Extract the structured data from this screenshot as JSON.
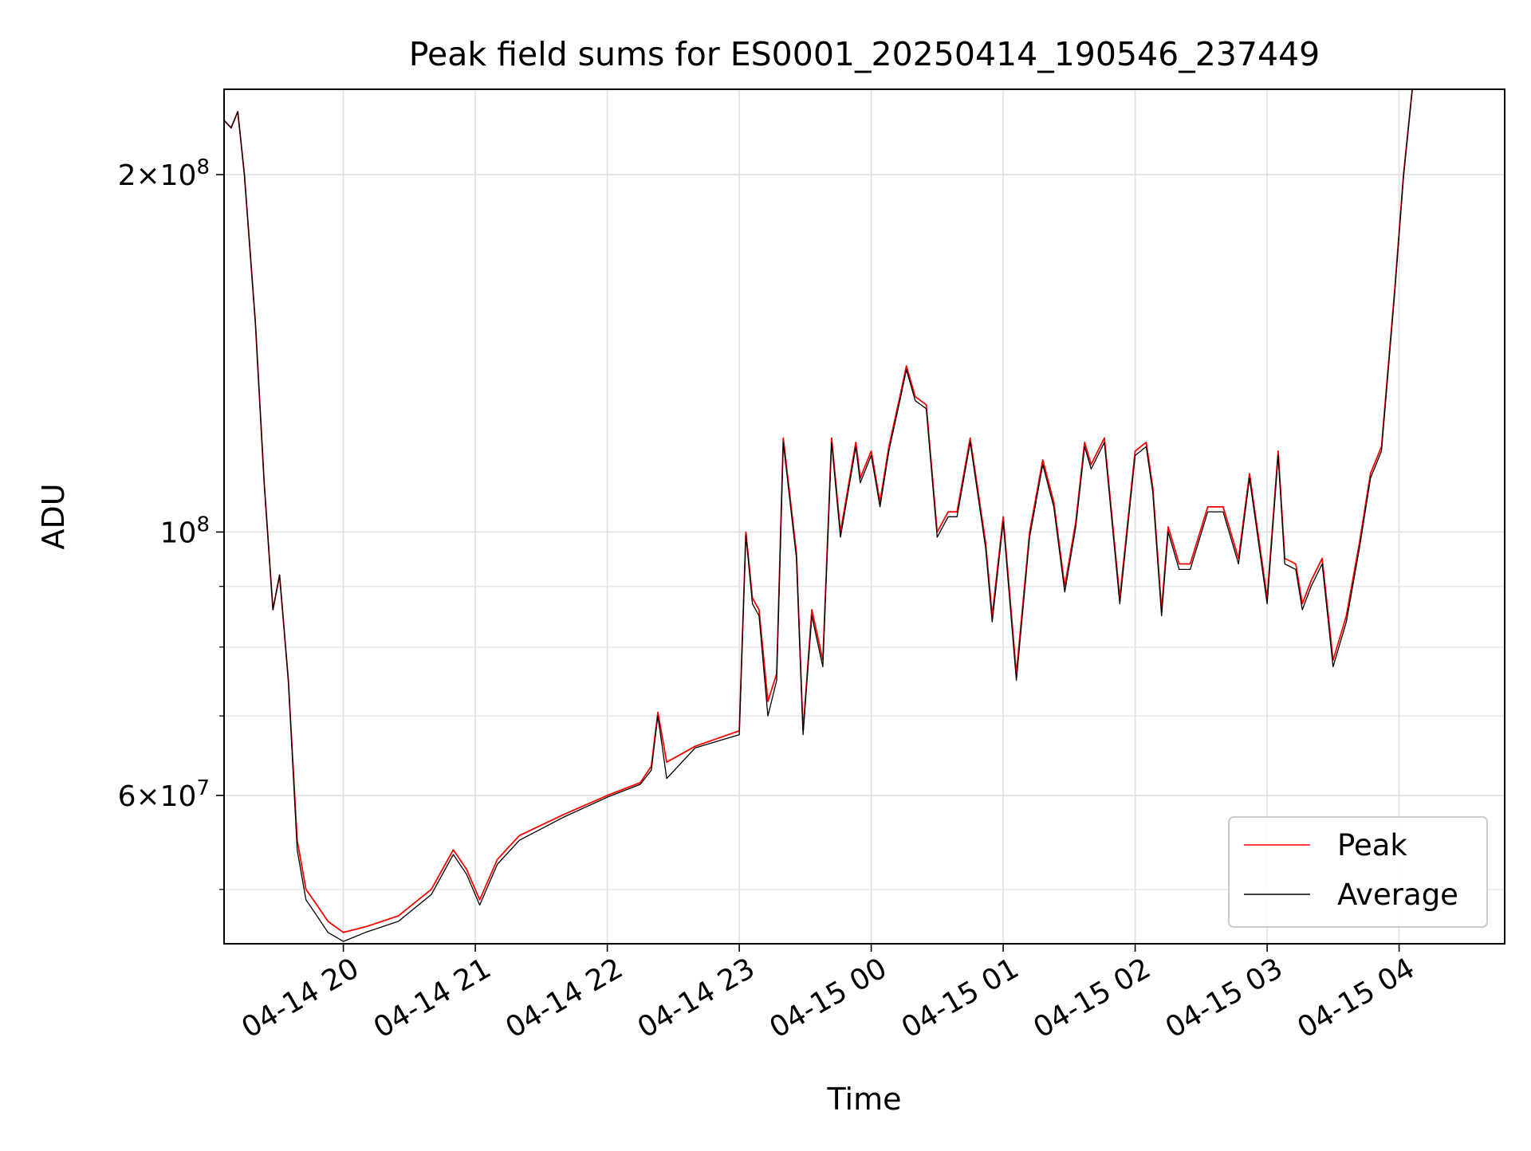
{
  "chart_data": {
    "type": "line",
    "title": "Peak field sums for ES0001_20250414_190546_237449",
    "xlabel": "Time",
    "ylabel": "ADU",
    "y_scale": "log",
    "ylim": [
      45000000,
      236000000
    ],
    "xlim": [
      "2025-04-14 19:05:46",
      "2025-04-15 04:48:00"
    ],
    "grid": true,
    "legend_position": "lower-right",
    "x_ticks": [
      {
        "t": "2025-04-14 20:00",
        "label": "04-14 20"
      },
      {
        "t": "2025-04-14 21:00",
        "label": "04-14 21"
      },
      {
        "t": "2025-04-14 22:00",
        "label": "04-14 22"
      },
      {
        "t": "2025-04-14 23:00",
        "label": "04-14 23"
      },
      {
        "t": "2025-04-15 00:00",
        "label": "04-15 00"
      },
      {
        "t": "2025-04-15 01:00",
        "label": "04-15 01"
      },
      {
        "t": "2025-04-15 02:00",
        "label": "04-15 02"
      },
      {
        "t": "2025-04-15 03:00",
        "label": "04-15 03"
      },
      {
        "t": "2025-04-15 04:00",
        "label": "04-15 04"
      }
    ],
    "y_major_ticks": [
      {
        "value": 100000000,
        "mantissa": "",
        "exponent": "8"
      },
      {
        "value": 200000000,
        "mantissa": "2",
        "exponent": "8"
      },
      {
        "value": 60000000,
        "mantissa": "6",
        "exponent": "7"
      }
    ],
    "y_minor_ticks": [
      50000000,
      70000000,
      80000000,
      90000000
    ],
    "series": [
      {
        "name": "Peak",
        "color": "#ff0000",
        "x": [
          "2025-04-14 19:06",
          "2025-04-14 19:09",
          "2025-04-14 19:12",
          "2025-04-14 19:15",
          "2025-04-14 19:20",
          "2025-04-14 19:24",
          "2025-04-14 19:28",
          "2025-04-14 19:31",
          "2025-04-14 19:35",
          "2025-04-14 19:39",
          "2025-04-14 19:43",
          "2025-04-14 19:48",
          "2025-04-14 19:53",
          "2025-04-14 20:00",
          "2025-04-14 20:10",
          "2025-04-14 20:25",
          "2025-04-14 20:40",
          "2025-04-14 20:50",
          "2025-04-14 20:56",
          "2025-04-14 21:02",
          "2025-04-14 21:10",
          "2025-04-14 21:20",
          "2025-04-14 21:40",
          "2025-04-14 22:00",
          "2025-04-14 22:15",
          "2025-04-14 22:20",
          "2025-04-14 22:23",
          "2025-04-14 22:27",
          "2025-04-14 22:40",
          "2025-04-14 23:00",
          "2025-04-14 23:03",
          "2025-04-14 23:06",
          "2025-04-14 23:09",
          "2025-04-14 23:13",
          "2025-04-14 23:17",
          "2025-04-14 23:20",
          "2025-04-14 23:26",
          "2025-04-14 23:29",
          "2025-04-14 23:33",
          "2025-04-14 23:38",
          "2025-04-14 23:42",
          "2025-04-14 23:46",
          "2025-04-14 23:53",
          "2025-04-14 23:55",
          "2025-04-15 00:00",
          "2025-04-15 00:04",
          "2025-04-15 00:08",
          "2025-04-15 00:13",
          "2025-04-15 00:16",
          "2025-04-15 00:20",
          "2025-04-15 00:25",
          "2025-04-15 00:30",
          "2025-04-15 00:35",
          "2025-04-15 00:39",
          "2025-04-15 00:45",
          "2025-04-15 00:52",
          "2025-04-15 00:55",
          "2025-04-15 01:00",
          "2025-04-15 01:06",
          "2025-04-15 01:12",
          "2025-04-15 01:18",
          "2025-04-15 01:23",
          "2025-04-15 01:28",
          "2025-04-15 01:33",
          "2025-04-15 01:37",
          "2025-04-15 01:40",
          "2025-04-15 01:46",
          "2025-04-15 01:53",
          "2025-04-15 02:00",
          "2025-04-15 02:05",
          "2025-04-15 02:08",
          "2025-04-15 02:12",
          "2025-04-15 02:15",
          "2025-04-15 02:20",
          "2025-04-15 02:25",
          "2025-04-15 02:33",
          "2025-04-15 02:40",
          "2025-04-15 02:47",
          "2025-04-15 02:52",
          "2025-04-15 03:00",
          "2025-04-15 03:05",
          "2025-04-15 03:08",
          "2025-04-15 03:13",
          "2025-04-15 03:16",
          "2025-04-15 03:20",
          "2025-04-15 03:25",
          "2025-04-15 03:30",
          "2025-04-15 03:36",
          "2025-04-15 03:42",
          "2025-04-15 03:47",
          "2025-04-15 03:52",
          "2025-04-15 03:58",
          "2025-04-15 04:02",
          "2025-04-15 04:06",
          "2025-04-15 04:12",
          "2025-04-15 04:20",
          "2025-04-15 04:26",
          "2025-04-15 04:30",
          "2025-04-15 04:36",
          "2025-04-15 04:40"
        ],
        "y": [
          222000000,
          219000000,
          226000000,
          200000000,
          150000000,
          110000000,
          86000000,
          92000000,
          75000000,
          55000000,
          50000000,
          48500000,
          47000000,
          46000000,
          46500000,
          47500000,
          50000000,
          54000000,
          52000000,
          49000000,
          53000000,
          55500000,
          57800000,
          60000000,
          61500000,
          63500000,
          70500000,
          64000000,
          66000000,
          68000000,
          100000000,
          88000000,
          86000000,
          72000000,
          76000000,
          120000000,
          96000000,
          68000000,
          86000000,
          78000000,
          120000000,
          100000000,
          119000000,
          111000000,
          117000000,
          106000000,
          118000000,
          130000000,
          138000000,
          130000000,
          128000000,
          100000000,
          104000000,
          104000000,
          120000000,
          98000000,
          85000000,
          103000000,
          76000000,
          100000000,
          115000000,
          106000000,
          90000000,
          102000000,
          119000000,
          114000000,
          120000000,
          88000000,
          117000000,
          119000000,
          109000000,
          86000000,
          101000000,
          94000000,
          94000000,
          105000000,
          105000000,
          95000000,
          112000000,
          88000000,
          117000000,
          95000000,
          94000000,
          87000000,
          91000000,
          95000000,
          78000000,
          85000000,
          98000000,
          112000000,
          118000000,
          160000000,
          200000000,
          236000000,
          236000000,
          236000000,
          236000000,
          236000000,
          236000000,
          236000000
        ]
      },
      {
        "name": "Average",
        "color": "#000000",
        "x": [
          "2025-04-14 19:06",
          "2025-04-14 19:09",
          "2025-04-14 19:12",
          "2025-04-14 19:15",
          "2025-04-14 19:20",
          "2025-04-14 19:24",
          "2025-04-14 19:28",
          "2025-04-14 19:31",
          "2025-04-14 19:35",
          "2025-04-14 19:39",
          "2025-04-14 19:43",
          "2025-04-14 19:48",
          "2025-04-14 19:53",
          "2025-04-14 20:00",
          "2025-04-14 20:10",
          "2025-04-14 20:25",
          "2025-04-14 20:40",
          "2025-04-14 20:50",
          "2025-04-14 20:56",
          "2025-04-14 21:02",
          "2025-04-14 21:10",
          "2025-04-14 21:20",
          "2025-04-14 21:40",
          "2025-04-14 22:00",
          "2025-04-14 22:15",
          "2025-04-14 22:20",
          "2025-04-14 22:23",
          "2025-04-14 22:27",
          "2025-04-14 22:40",
          "2025-04-14 23:00",
          "2025-04-14 23:03",
          "2025-04-14 23:06",
          "2025-04-14 23:09",
          "2025-04-14 23:13",
          "2025-04-14 23:17",
          "2025-04-14 23:20",
          "2025-04-14 23:26",
          "2025-04-14 23:29",
          "2025-04-14 23:33",
          "2025-04-14 23:38",
          "2025-04-14 23:42",
          "2025-04-14 23:46",
          "2025-04-14 23:53",
          "2025-04-14 23:55",
          "2025-04-15 00:00",
          "2025-04-15 00:04",
          "2025-04-15 00:08",
          "2025-04-15 00:13",
          "2025-04-15 00:16",
          "2025-04-15 00:20",
          "2025-04-15 00:25",
          "2025-04-15 00:30",
          "2025-04-15 00:35",
          "2025-04-15 00:39",
          "2025-04-15 00:45",
          "2025-04-15 00:52",
          "2025-04-15 00:55",
          "2025-04-15 01:00",
          "2025-04-15 01:06",
          "2025-04-15 01:12",
          "2025-04-15 01:18",
          "2025-04-15 01:23",
          "2025-04-15 01:28",
          "2025-04-15 01:33",
          "2025-04-15 01:37",
          "2025-04-15 01:40",
          "2025-04-15 01:46",
          "2025-04-15 01:53",
          "2025-04-15 02:00",
          "2025-04-15 02:05",
          "2025-04-15 02:08",
          "2025-04-15 02:12",
          "2025-04-15 02:15",
          "2025-04-15 02:20",
          "2025-04-15 02:25",
          "2025-04-15 02:33",
          "2025-04-15 02:40",
          "2025-04-15 02:47",
          "2025-04-15 02:52",
          "2025-04-15 03:00",
          "2025-04-15 03:05",
          "2025-04-15 03:08",
          "2025-04-15 03:13",
          "2025-04-15 03:16",
          "2025-04-15 03:20",
          "2025-04-15 03:25",
          "2025-04-15 03:30",
          "2025-04-15 03:36",
          "2025-04-15 03:42",
          "2025-04-15 03:47",
          "2025-04-15 03:52",
          "2025-04-15 03:58",
          "2025-04-15 04:02",
          "2025-04-15 04:06",
          "2025-04-15 04:12",
          "2025-04-15 04:20",
          "2025-04-15 04:26",
          "2025-04-15 04:30",
          "2025-04-15 04:36",
          "2025-04-15 04:40"
        ],
        "y": [
          222000000,
          219000000,
          226000000,
          200000000,
          150000000,
          110000000,
          86000000,
          92000000,
          75000000,
          54000000,
          49000000,
          47500000,
          46000000,
          45200000,
          46000000,
          47000000,
          49500000,
          53500000,
          51500000,
          48500000,
          52500000,
          55000000,
          57500000,
          59800000,
          61300000,
          63000000,
          70000000,
          62000000,
          65800000,
          67500000,
          99500000,
          87000000,
          85000000,
          70000000,
          75000000,
          119000000,
          95000000,
          67500000,
          85000000,
          77000000,
          119000000,
          99000000,
          118000000,
          110000000,
          116000000,
          105000000,
          117000000,
          129000000,
          137000000,
          129000000,
          127000000,
          99000000,
          103000000,
          103000000,
          119000000,
          97000000,
          84000000,
          102000000,
          75000000,
          99000000,
          114000000,
          105000000,
          89000000,
          101000000,
          118000000,
          113000000,
          119000000,
          87000000,
          116000000,
          118000000,
          108000000,
          85000000,
          100000000,
          93000000,
          93000000,
          104000000,
          104000000,
          94000000,
          111000000,
          87000000,
          116000000,
          94000000,
          93000000,
          86000000,
          90000000,
          94000000,
          77000000,
          84000000,
          97000000,
          111000000,
          117000000,
          159000000,
          199000000,
          236000000,
          236000000,
          236000000,
          236000000,
          236000000,
          236000000,
          236000000
        ]
      }
    ]
  }
}
